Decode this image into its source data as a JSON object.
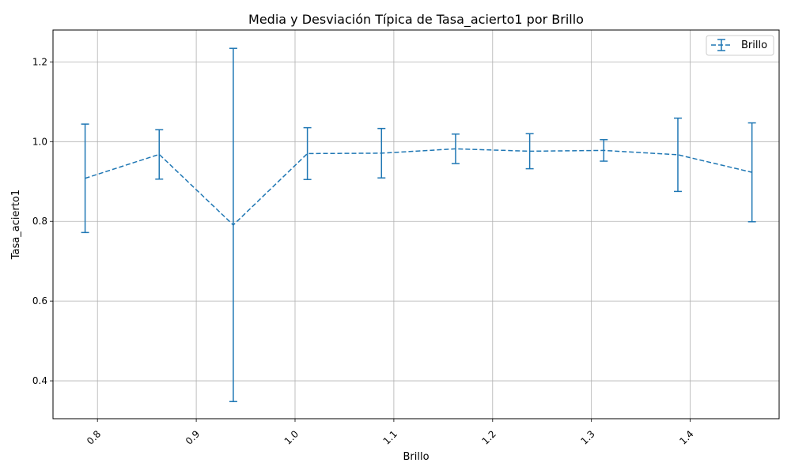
{
  "chart_data": {
    "type": "line",
    "title": "Media y Desviación Típica de Tasa_acierto1 por Brillo",
    "xlabel": "Brillo",
    "ylabel": "Tasa_acierto1",
    "xlim": [
      0.755,
      1.49
    ],
    "ylim": [
      0.305,
      1.28
    ],
    "xticks": [
      0.8,
      0.9,
      1.0,
      1.1,
      1.2,
      1.3,
      1.4
    ],
    "xtick_labels": [
      "0.8",
      "0.9",
      "1.0",
      "1.1",
      "1.2",
      "1.3",
      "1.4"
    ],
    "yticks": [
      0.4,
      0.6,
      0.8,
      1.0,
      1.2
    ],
    "ytick_labels": [
      "0.4",
      "0.6",
      "0.8",
      "1.0",
      "1.2"
    ],
    "grid": true,
    "legend_position": "top-right",
    "series": [
      {
        "name": "Brillo",
        "color": "#1f77b4",
        "line_style": "dashed",
        "x": [
          0.7875,
          0.8625,
          0.9375,
          1.0125,
          1.0875,
          1.1625,
          1.2375,
          1.3125,
          1.3875,
          1.4625
        ],
        "y": [
          0.908,
          0.968,
          0.791,
          0.97,
          0.971,
          0.982,
          0.976,
          0.978,
          0.967,
          0.923
        ],
        "yerr": [
          0.136,
          0.062,
          0.443,
          0.065,
          0.062,
          0.037,
          0.044,
          0.027,
          0.092,
          0.124
        ]
      }
    ]
  }
}
